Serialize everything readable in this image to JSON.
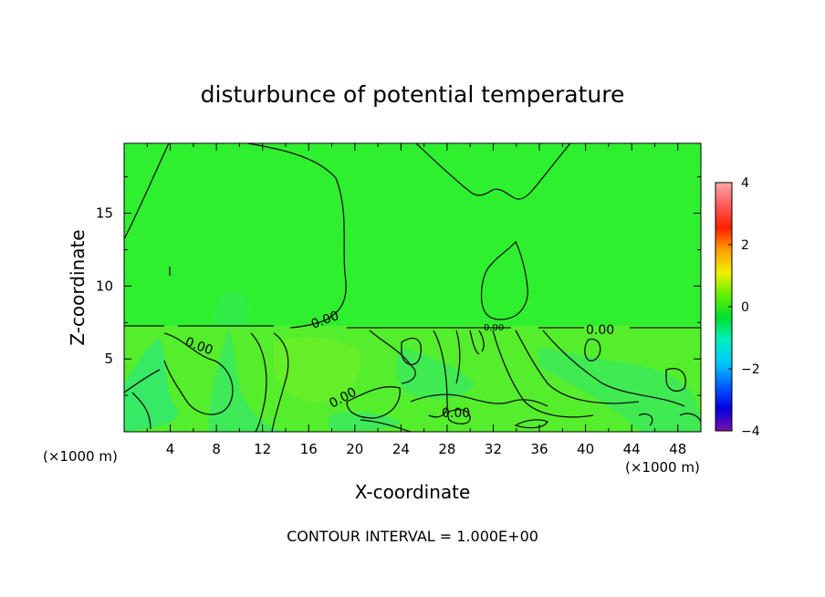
{
  "chart_data": {
    "type": "heatmap",
    "title": "disturbunce of potential temperature",
    "xlabel": "X-coordinate",
    "ylabel": "Z-coordinate",
    "x_unit_label": "(×1000 m)",
    "y_unit_label": "(×1000 m)",
    "xlim": [
      0,
      50
    ],
    "ylim": [
      0,
      19.8
    ],
    "x_ticks": [
      "4",
      "8",
      "12",
      "16",
      "20",
      "24",
      "28",
      "32",
      "36",
      "40",
      "44",
      "48"
    ],
    "y_ticks": [
      "5",
      "10",
      "15"
    ],
    "colorbar": {
      "range": [
        -4,
        4
      ],
      "ticks": [
        "4",
        "2",
        "0",
        "−2",
        "−4"
      ],
      "colormap": [
        "#7b0fa8",
        "#0000e0",
        "#0060ff",
        "#00c8ff",
        "#00f0c0",
        "#00e030",
        "#60f000",
        "#f0f000",
        "#ffa000",
        "#ff2000",
        "#ff5a5a",
        "#ffa8a8"
      ]
    },
    "background_value": 0,
    "contour_interval": "CONTOUR INTERVAL = 1.000E+00",
    "contour_labels": [
      "0.00",
      "0.00",
      "0.00",
      "0.00",
      "0.00",
      "0.00"
    ],
    "inversion_level_z": 7.3,
    "colors": {
      "upper_layer": "#2ff02f",
      "lower_layer": "#55ee2c",
      "cyan_patch": "#2fe874"
    }
  }
}
